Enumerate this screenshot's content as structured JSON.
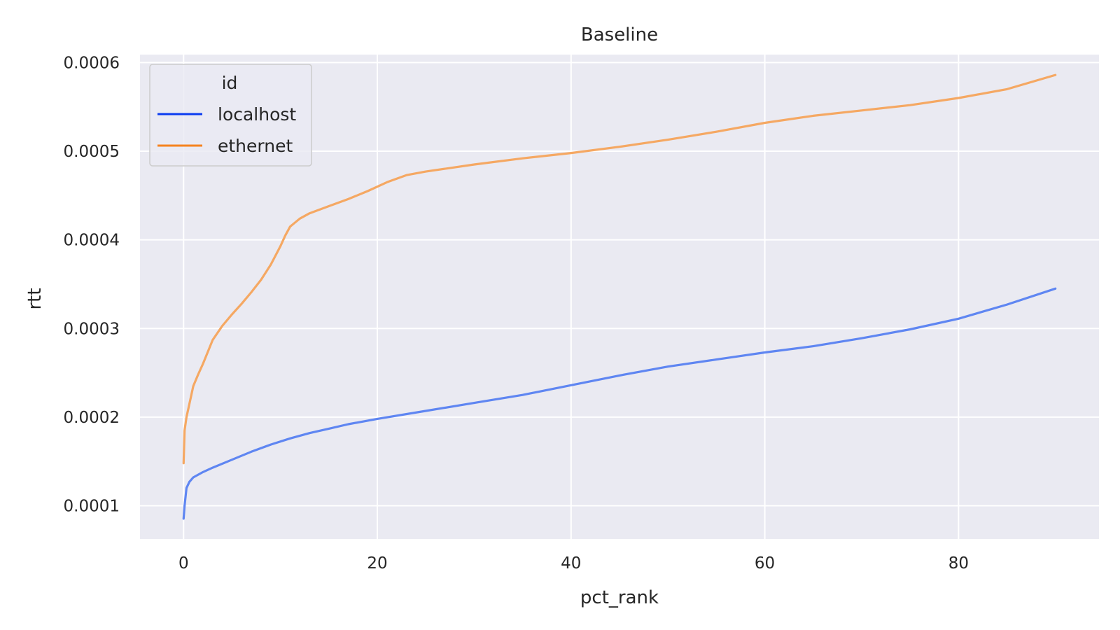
{
  "chart_data": {
    "type": "line",
    "title": "Baseline",
    "xlabel": "pct_rank",
    "ylabel": "rtt",
    "xlim": [
      -4.5,
      94.5
    ],
    "ylim": [
      6.25e-05,
      0.000609
    ],
    "xticks": [
      0,
      20,
      40,
      60,
      80
    ],
    "xtick_labels": [
      "0",
      "20",
      "40",
      "60",
      "80"
    ],
    "yticks": [
      0.0001,
      0.0002,
      0.0003,
      0.0004,
      0.0005,
      0.0006
    ],
    "ytick_labels": [
      "0.0001",
      "0.0002",
      "0.0003",
      "0.0004",
      "0.0005",
      "0.0006"
    ],
    "grid": true,
    "legend": {
      "title": "id",
      "placement": "top-left",
      "entries": [
        "localhost",
        "ethernet"
      ]
    },
    "colors": {
      "background": "#eaeaf2",
      "localhost_legend": "#0a3bf0",
      "ethernet_legend": "#f5831f"
    },
    "series": [
      {
        "name": "localhost",
        "color": "#5f86f2",
        "x": [
          0,
          0.1,
          0.3,
          0.6,
          1,
          2,
          3,
          5,
          7,
          9,
          11,
          13,
          15,
          17,
          20,
          25,
          30,
          35,
          40,
          45,
          50,
          55,
          60,
          65,
          70,
          75,
          80,
          85,
          90
        ],
        "y": [
          8.55e-05,
          0.0001,
          0.00012,
          0.000127,
          0.000132,
          0.000138,
          0.000143,
          0.000152,
          0.000161,
          0.000169,
          0.000176,
          0.000182,
          0.000187,
          0.000192,
          0.000198,
          0.000207,
          0.000216,
          0.000225,
          0.000236,
          0.000247,
          0.000257,
          0.000265,
          0.000273,
          0.00028,
          0.000289,
          0.000299,
          0.000311,
          0.000327,
          0.000345
        ]
      },
      {
        "name": "ethernet",
        "color": "#f5a863",
        "x": [
          0,
          0.1,
          0.3,
          0.6,
          1,
          1.5,
          2,
          3,
          4,
          5,
          6,
          7,
          8,
          9,
          10,
          10.5,
          11,
          12,
          13,
          15,
          17,
          19,
          21,
          23,
          25,
          30,
          35,
          40,
          45,
          50,
          55,
          60,
          65,
          70,
          75,
          80,
          85,
          90
        ],
        "y": [
          0.000148,
          0.000185,
          0.0002,
          0.000215,
          0.000235,
          0.000248,
          0.00026,
          0.000287,
          0.000303,
          0.000316,
          0.000328,
          0.000341,
          0.000355,
          0.000372,
          0.000393,
          0.000405,
          0.000415,
          0.000424,
          0.00043,
          0.000438,
          0.000446,
          0.000455,
          0.000465,
          0.000473,
          0.000477,
          0.000485,
          0.000492,
          0.000498,
          0.000505,
          0.000513,
          0.000522,
          0.000532,
          0.00054,
          0.000546,
          0.000552,
          0.00056,
          0.00057,
          0.000586
        ]
      }
    ]
  }
}
